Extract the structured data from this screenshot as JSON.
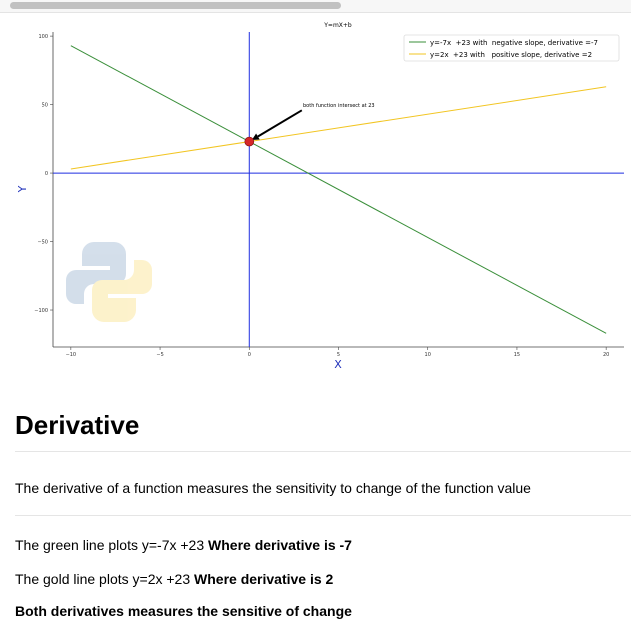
{
  "chart_data": {
    "type": "line",
    "title": "Y=mX+b",
    "xlabel": "X",
    "ylabel": "Y",
    "xlim": [
      -11,
      21
    ],
    "ylim": [
      -127,
      103
    ],
    "x_ticks": [
      -10,
      -5,
      0,
      5,
      10,
      15,
      20
    ],
    "y_ticks": [
      100,
      50,
      0,
      -50,
      -100
    ],
    "grid": false,
    "legend_position": "top-right",
    "series": [
      {
        "name": "y=-7x  +23 with  negative slope, derivative =-7",
        "color": "#3a8f3a",
        "x": [
          -10,
          20
        ],
        "y": [
          93,
          -117
        ]
      },
      {
        "name": "y=2x  +23 with   positive slope, derivative =2",
        "color": "#f2c522",
        "x": [
          -10,
          20
        ],
        "y": [
          3,
          63
        ]
      }
    ],
    "reference_lines": {
      "vertical_x": 0,
      "horizontal_y": 0,
      "color": "#1f2ee0"
    },
    "intersection_point": {
      "x": 0,
      "y": 23
    },
    "annotation": {
      "text": "both function intersect at 23",
      "x": 3,
      "y": 48
    }
  },
  "notes": {
    "heading": "Derivative",
    "intro": "The derivative of a function measures the sensitivity to change of the function value",
    "green_prefix": "The green line plots y=-7x +23 ",
    "green_bold": "Where derivative is -7",
    "gold_prefix": "The gold line plots y=2x +23 ",
    "gold_bold": "Where derivative is 2",
    "conclusion": "Both derivatives measures the sensitive of change"
  }
}
